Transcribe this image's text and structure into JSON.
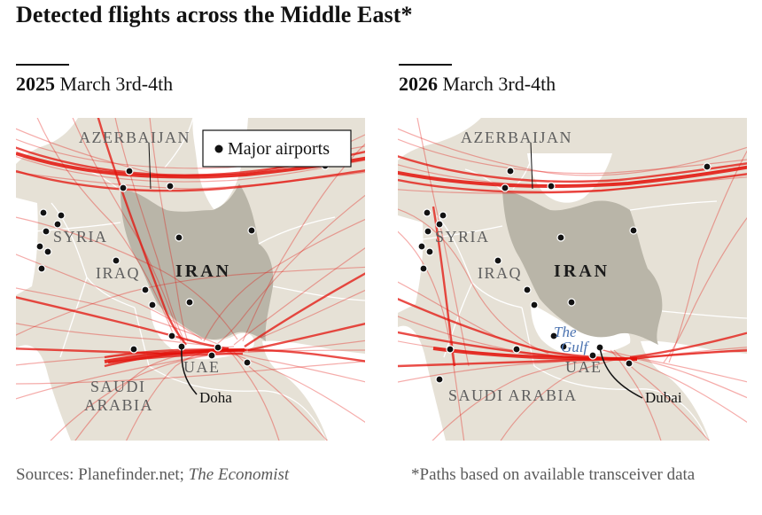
{
  "title": "Detected flights across the Middle East*",
  "panels": [
    {
      "year": "2025",
      "dates": "March 3rd-4th",
      "labels": {
        "azerbaijan": "AZERBAIJAN",
        "syria": "SYRIA",
        "iraq": "IRAQ",
        "iran": "IRAN",
        "uae": "UAE",
        "saudi_line1": "SAUDI",
        "saudi_line2": "ARABIA",
        "callout": "Doha"
      },
      "legend": "Major airports"
    },
    {
      "year": "2026",
      "dates": "March 3rd-4th",
      "labels": {
        "azerbaijan": "AZERBAIJAN",
        "syria": "SYRIA",
        "iraq": "IRAQ",
        "iran": "IRAN",
        "uae": "UAE",
        "saudi": "SAUDI ARABIA",
        "gulf_line1": "The",
        "gulf_line2": "Gulf",
        "callout": "Dubai"
      }
    }
  ],
  "footer": {
    "sources_prefix": "Sources: Planefinder.net; ",
    "sources_italic": "The Economist",
    "note": "*Paths based on available transceiver data"
  },
  "colors": {
    "flight_path": "#e3120b",
    "land": "#e6e1d6",
    "iran_land": "#b9b5a8",
    "water": "#ffffff",
    "airport": "#121212"
  }
}
